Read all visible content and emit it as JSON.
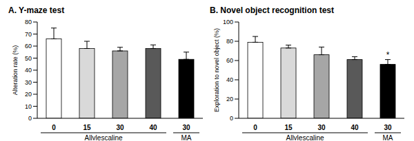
{
  "chart_data": [
    {
      "type": "bar",
      "title": "A. Y-maze test",
      "y_label": "Alteration rate (%)",
      "categories": [
        "0",
        "15",
        "30",
        "40",
        "30"
      ],
      "groups": [
        "Allylescaline",
        "Allylescaline",
        "Allylescaline",
        "Allylescaline",
        "MA"
      ],
      "values": [
        66,
        58,
        56,
        58,
        49
      ],
      "errors": [
        9,
        6,
        3,
        3,
        6
      ],
      "colors": [
        "#ffffff",
        "#d9d9d9",
        "#a6a6a6",
        "#595959",
        "#000000"
      ],
      "ylim": [
        0,
        80
      ],
      "yticks": [
        0,
        10,
        20,
        30,
        40,
        50,
        60,
        70,
        80
      ],
      "grid": false
    },
    {
      "type": "bar",
      "title": "B. Novel object recognition test",
      "y_label": "Exploration to novel object (%)",
      "categories": [
        "0",
        "15",
        "30",
        "40",
        "30"
      ],
      "groups": [
        "Allylescaline",
        "Allylescaline",
        "Allylescaline",
        "Allylescaline",
        "MA"
      ],
      "values": [
        79,
        73,
        66,
        61,
        56
      ],
      "errors": [
        6,
        3,
        8,
        3,
        5
      ],
      "colors": [
        "#ffffff",
        "#d9d9d9",
        "#a6a6a6",
        "#595959",
        "#000000"
      ],
      "ylim": [
        0,
        100
      ],
      "yticks": [
        0,
        20,
        40,
        60,
        80,
        100
      ],
      "annotations": [
        {
          "index": 4,
          "text": "*"
        }
      ],
      "grid": false
    }
  ]
}
